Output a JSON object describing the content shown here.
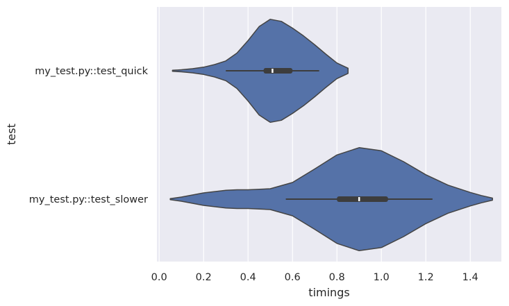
{
  "chart_data": {
    "type": "violin",
    "orientation": "horizontal",
    "xlabel": "timings",
    "ylabel": "test",
    "xlim": [
      -0.01,
      1.54
    ],
    "xticks": [
      0.0,
      0.2,
      0.4,
      0.6,
      0.8,
      1.0,
      1.2,
      1.4
    ],
    "xtick_labels": [
      "0.0",
      "0.2",
      "0.4",
      "0.6",
      "0.8",
      "1.0",
      "1.2",
      "1.4"
    ],
    "categories": [
      "my_test.py::test_quick",
      "my_test.py::test_slower"
    ],
    "grid": true,
    "background_color": "#eaeaf2",
    "violin_color": "#5572a8",
    "edge_color": "#444444",
    "series": [
      {
        "category": "my_test.py::test_quick",
        "range": [
          0.06,
          0.85
        ],
        "whisker": [
          0.3,
          0.72
        ],
        "quartiles": [
          0.47,
          0.6
        ],
        "median": 0.51,
        "density": [
          [
            0.06,
            0.01
          ],
          [
            0.1,
            0.02
          ],
          [
            0.15,
            0.04
          ],
          [
            0.2,
            0.07
          ],
          [
            0.25,
            0.12
          ],
          [
            0.3,
            0.19
          ],
          [
            0.35,
            0.34
          ],
          [
            0.4,
            0.58
          ],
          [
            0.45,
            0.85
          ],
          [
            0.5,
            0.99
          ],
          [
            0.55,
            0.95
          ],
          [
            0.6,
            0.82
          ],
          [
            0.65,
            0.67
          ],
          [
            0.7,
            0.5
          ],
          [
            0.75,
            0.32
          ],
          [
            0.8,
            0.15
          ],
          [
            0.85,
            0.05
          ]
        ]
      },
      {
        "category": "my_test.py::test_slower",
        "range": [
          0.05,
          1.5
        ],
        "whisker": [
          0.57,
          1.23
        ],
        "quartiles": [
          0.8,
          1.03
        ],
        "median": 0.9,
        "density": [
          [
            0.05,
            0.01
          ],
          [
            0.1,
            0.04
          ],
          [
            0.2,
            0.12
          ],
          [
            0.3,
            0.17
          ],
          [
            0.35,
            0.18
          ],
          [
            0.4,
            0.18
          ],
          [
            0.5,
            0.2
          ],
          [
            0.6,
            0.32
          ],
          [
            0.7,
            0.58
          ],
          [
            0.8,
            0.85
          ],
          [
            0.9,
            0.99
          ],
          [
            1.0,
            0.93
          ],
          [
            1.1,
            0.72
          ],
          [
            1.2,
            0.47
          ],
          [
            1.3,
            0.27
          ],
          [
            1.4,
            0.13
          ],
          [
            1.45,
            0.07
          ],
          [
            1.5,
            0.02
          ]
        ]
      }
    ]
  }
}
